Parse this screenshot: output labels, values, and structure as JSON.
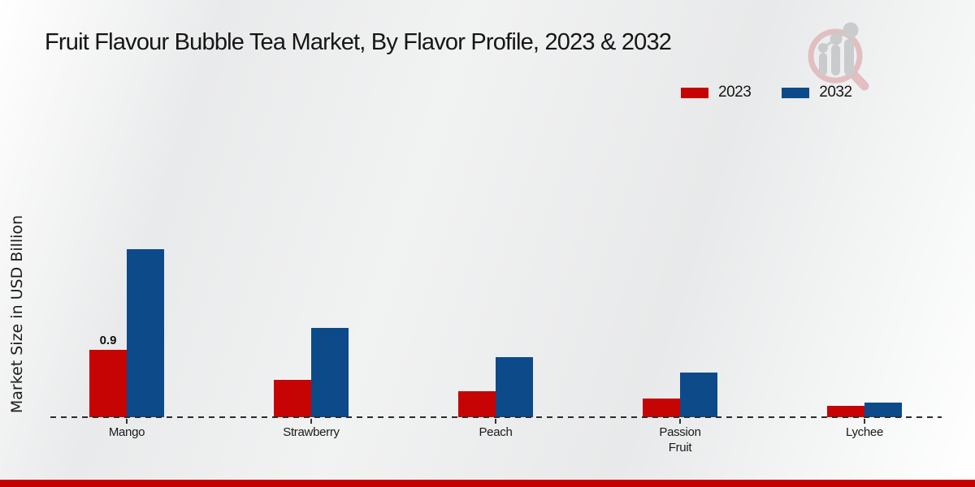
{
  "header": {
    "title": "Fruit Flavour Bubble Tea Market, By Flavor Profile, 2023 & 2032"
  },
  "y_axis": {
    "label": "Market Size in USD Billion"
  },
  "legend": {
    "items": [
      {
        "label": "2023",
        "color": "#c70404"
      },
      {
        "label": "2032",
        "color": "#0d4a8a"
      }
    ]
  },
  "branding": {
    "logo_icon": "magnifier-growth-chart-logo"
  },
  "footer": {
    "accent_color": "#c50000"
  },
  "chart_data": {
    "type": "bar",
    "title": "Fruit Flavour Bubble Tea Market, By Flavor Profile, 2023 & 2032",
    "xlabel": "",
    "ylabel": "Market Size in USD Billion",
    "units": "USD Billion",
    "categories": [
      "Mango",
      "Strawberry",
      "Peach",
      "Passion Fruit",
      "Lychee"
    ],
    "x_tick_labels": [
      "Mango",
      "Strawberry",
      "Peach",
      "Passion\nFruit",
      "Lychee"
    ],
    "series": [
      {
        "name": "2023",
        "color": "#c70404",
        "values": [
          0.9,
          0.5,
          0.35,
          0.25,
          0.15
        ]
      },
      {
        "name": "2032",
        "color": "#0d4a8a",
        "values": [
          2.25,
          1.2,
          0.8,
          0.6,
          0.2
        ]
      }
    ],
    "data_labels": [
      {
        "series": "2023",
        "category": "Mango",
        "text": "0.9"
      }
    ],
    "ylim": [
      0,
      2.5
    ],
    "grid": false,
    "legend_position": "top-right",
    "axis_line_style": "dashed-baseline-only"
  }
}
